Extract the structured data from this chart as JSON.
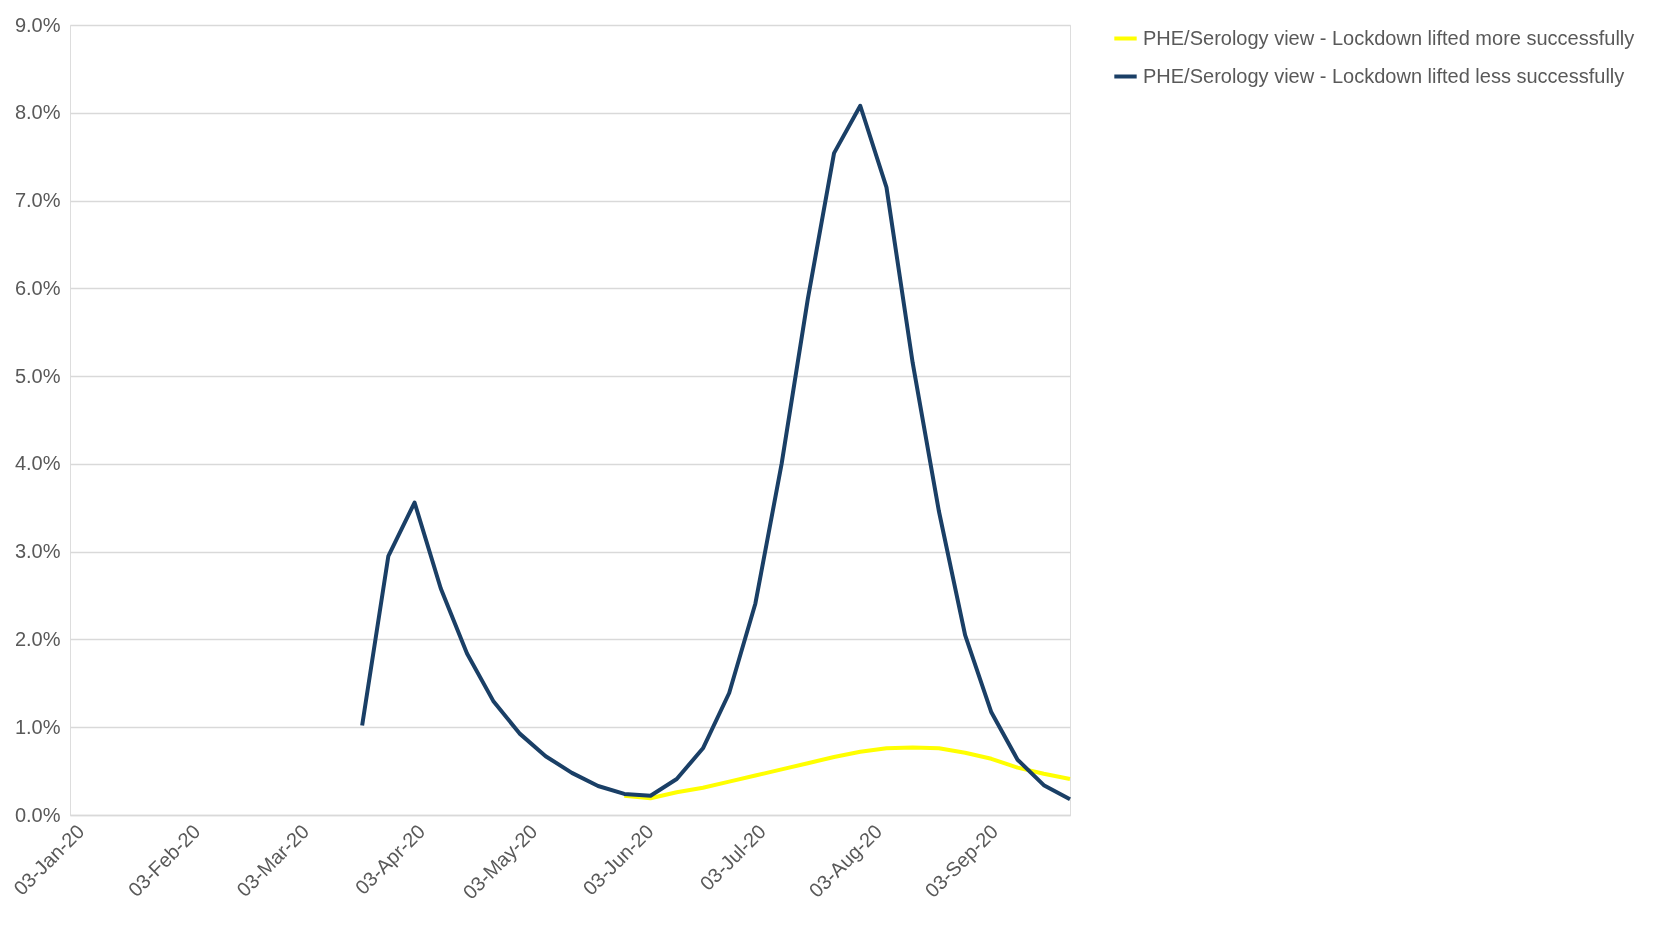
{
  "chart_data": {
    "type": "line",
    "x": [
      "2020-03-20",
      "2020-03-27",
      "2020-04-03",
      "2020-04-10",
      "2020-04-17",
      "2020-04-24",
      "2020-05-01",
      "2020-05-08",
      "2020-05-15",
      "2020-05-22",
      "2020-05-29",
      "2020-06-05",
      "2020-06-12",
      "2020-06-19",
      "2020-06-26",
      "2020-07-03",
      "2020-07-10",
      "2020-07-17",
      "2020-07-24",
      "2020-07-31",
      "2020-08-07",
      "2020-08-14",
      "2020-08-21",
      "2020-08-28",
      "2020-09-04",
      "2020-09-11",
      "2020-09-18",
      "2020-09-25"
    ],
    "series": [
      {
        "name": "PHE/Serology view - Lockdown lifted more successfully",
        "color": "#ffff00",
        "values": [
          null,
          null,
          null,
          null,
          null,
          null,
          null,
          null,
          null,
          null,
          0.22,
          0.19,
          0.26,
          0.31,
          0.38,
          0.45,
          0.52,
          0.59,
          0.66,
          0.72,
          0.76,
          0.77,
          0.76,
          0.71,
          0.64,
          0.54,
          0.47,
          0.41
        ]
      },
      {
        "name": "PHE/Serology view - Lockdown lifted less successfully",
        "color": "#1a3f66",
        "values": [
          1.02,
          2.95,
          3.56,
          2.58,
          1.84,
          1.3,
          0.93,
          0.67,
          0.48,
          0.33,
          0.24,
          0.22,
          0.41,
          0.76,
          1.39,
          2.41,
          4.0,
          5.88,
          7.54,
          8.08,
          7.15,
          5.15,
          3.46,
          2.05,
          1.17,
          0.63,
          0.34,
          0.18
        ]
      }
    ],
    "xlim": [
      "2020-01-02",
      "2020-09-25"
    ],
    "xticks": [
      {
        "value": "2020-01-03",
        "label": "03-Jan-20"
      },
      {
        "value": "2020-02-03",
        "label": "03-Feb-20"
      },
      {
        "value": "2020-03-03",
        "label": "03-Mar-20"
      },
      {
        "value": "2020-04-03",
        "label": "03-Apr-20"
      },
      {
        "value": "2020-05-03",
        "label": "03-May-20"
      },
      {
        "value": "2020-06-03",
        "label": "03-Jun-20"
      },
      {
        "value": "2020-07-03",
        "label": "03-Jul-20"
      },
      {
        "value": "2020-08-03",
        "label": "03-Aug-20"
      },
      {
        "value": "2020-09-03",
        "label": "03-Sep-20"
      }
    ],
    "ylim": [
      0,
      9
    ],
    "yticks": [
      {
        "value": 0,
        "label": "0.0%"
      },
      {
        "value": 1,
        "label": "1.0%"
      },
      {
        "value": 2,
        "label": "2.0%"
      },
      {
        "value": 3,
        "label": "3.0%"
      },
      {
        "value": 4,
        "label": "4.0%"
      },
      {
        "value": 5,
        "label": "5.0%"
      },
      {
        "value": 6,
        "label": "6.0%"
      },
      {
        "value": 7,
        "label": "7.0%"
      },
      {
        "value": 8,
        "label": "8.0%"
      },
      {
        "value": 9,
        "label": "9.0%"
      }
    ],
    "grid": "y",
    "legend": "right",
    "marker": "none",
    "line_style": "solid"
  }
}
